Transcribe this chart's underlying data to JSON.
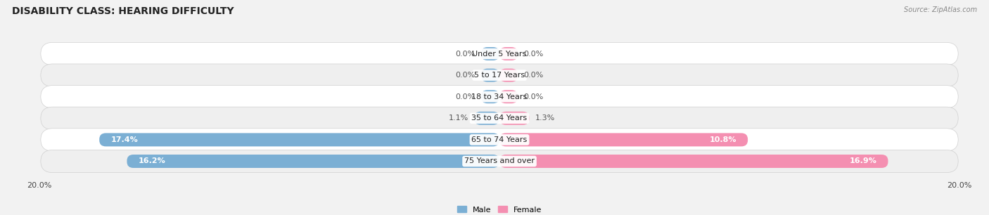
{
  "title": "DISABILITY CLASS: HEARING DIFFICULTY",
  "source": "Source: ZipAtlas.com",
  "categories": [
    "Under 5 Years",
    "5 to 17 Years",
    "18 to 34 Years",
    "35 to 64 Years",
    "65 to 74 Years",
    "75 Years and over"
  ],
  "male_values": [
    0.0,
    0.0,
    0.0,
    1.1,
    17.4,
    16.2
  ],
  "female_values": [
    0.0,
    0.0,
    0.0,
    1.3,
    10.8,
    16.9
  ],
  "male_color": "#7bafd4",
  "female_color": "#f48fb1",
  "male_label": "Male",
  "female_label": "Female",
  "axis_max": 20.0,
  "bar_height": 0.62,
  "bg_color": "#f2f2f2",
  "row_bg_color": "#e8e8e8",
  "row_alt_color": "#f8f8f8",
  "title_fontsize": 10,
  "label_fontsize": 8,
  "tick_fontsize": 8,
  "source_fontsize": 7,
  "min_bar_display": 0.8
}
